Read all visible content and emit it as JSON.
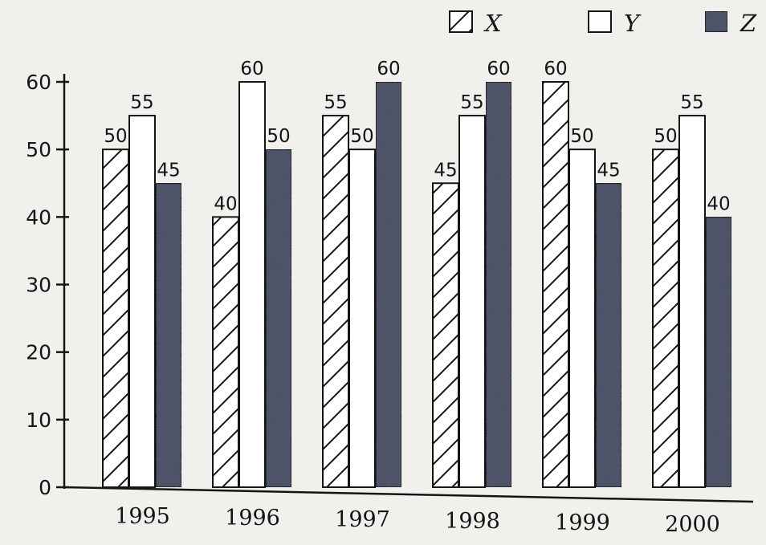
{
  "chart_data": {
    "type": "bar",
    "categories": [
      "1995",
      "1996",
      "1997",
      "1998",
      "1999",
      "2000"
    ],
    "series": [
      {
        "name": "X",
        "values": [
          50,
          40,
          55,
          45,
          60,
          50
        ],
        "pattern": "hatch",
        "color": "#ffffff"
      },
      {
        "name": "Y",
        "values": [
          55,
          60,
          50,
          55,
          50,
          55
        ],
        "pattern": "plain",
        "color": "#ffffff"
      },
      {
        "name": "Z",
        "values": [
          45,
          50,
          60,
          60,
          45,
          40
        ],
        "pattern": "speckle",
        "color": "#4f5568"
      }
    ],
    "ylim": [
      0,
      60
    ],
    "yticks": [
      0,
      10,
      20,
      30,
      40,
      50,
      60
    ],
    "grid": false,
    "legend": "top-right",
    "title": "",
    "xlabel": "",
    "ylabel": ""
  }
}
